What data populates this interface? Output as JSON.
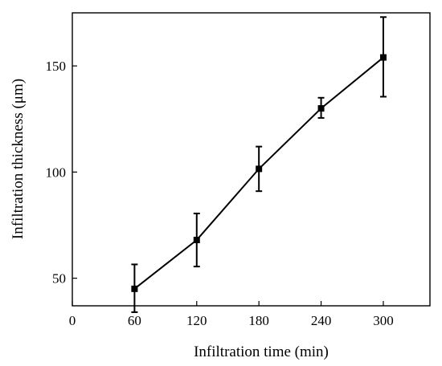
{
  "chart_data": {
    "type": "line",
    "xlabel": "Infiltration time (min)",
    "ylabel": "Infiltration thickness (μm)",
    "xlim": [
      0,
      345
    ],
    "ylim": [
      37,
      175
    ],
    "x_ticks": [
      0,
      60,
      120,
      180,
      240,
      300
    ],
    "y_ticks": [
      50,
      100,
      150
    ],
    "grid": false,
    "series": [
      {
        "x": [
          60,
          120,
          180,
          240,
          300
        ],
        "y": [
          45.0,
          68.0,
          101.5,
          130.0,
          154.0
        ],
        "error_low": [
          34.0,
          55.5,
          91.0,
          125.5,
          135.5
        ],
        "error_high": [
          56.5,
          80.5,
          112.0,
          135.0,
          173.0
        ],
        "marker": "square",
        "color": "#000000"
      }
    ]
  }
}
